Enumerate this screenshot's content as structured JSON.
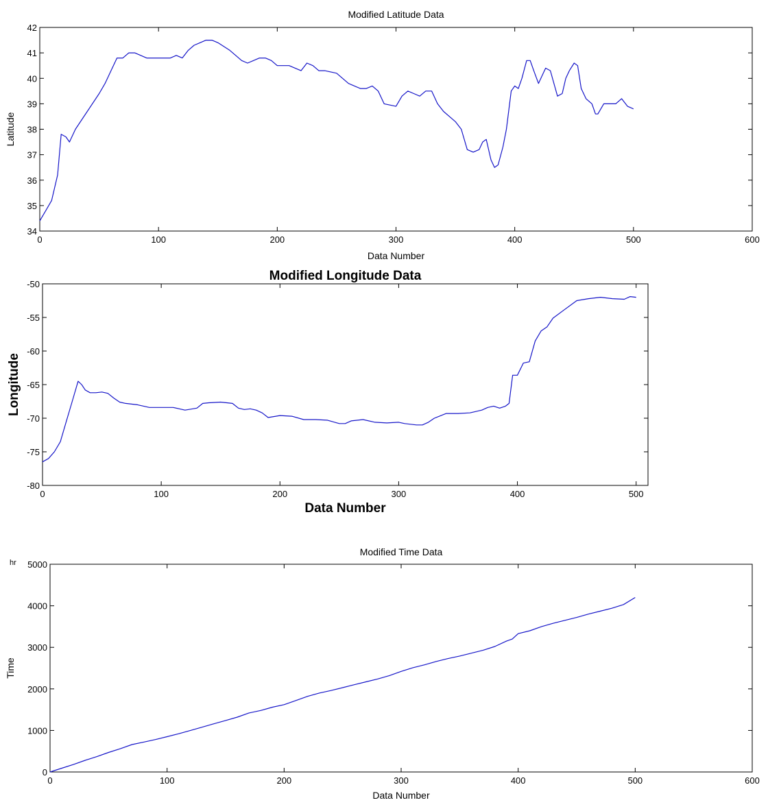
{
  "chart_data": [
    {
      "type": "line",
      "title": "Modified Latitude Data",
      "xlabel": "Data Number",
      "ylabel": "Latitude",
      "xlim": [
        0,
        600
      ],
      "ylim": [
        34,
        42
      ],
      "xticks": [
        0,
        100,
        200,
        300,
        400,
        500,
        600
      ],
      "yticks": [
        34,
        35,
        36,
        37,
        38,
        39,
        40,
        41,
        42
      ],
      "grid": false,
      "color": "#1414c8",
      "series": [
        {
          "x": [
            0,
            5,
            10,
            15,
            18,
            22,
            25,
            30,
            40,
            50,
            55,
            60,
            65,
            70,
            75,
            80,
            90,
            100,
            110,
            115,
            120,
            125,
            130,
            135,
            140,
            145,
            150,
            160,
            165,
            170,
            175,
            180,
            185,
            190,
            195,
            200,
            210,
            220,
            225,
            230,
            235,
            240,
            250,
            260,
            265,
            270,
            275,
            280,
            285,
            290,
            300,
            305,
            310,
            315,
            320,
            325,
            330,
            335,
            340,
            345,
            350,
            355,
            360,
            365,
            370,
            373,
            376,
            380,
            383,
            386,
            390,
            393,
            397,
            400,
            403,
            406,
            410,
            413,
            416,
            420,
            423,
            426,
            430,
            433,
            436,
            440,
            443,
            446,
            450,
            453,
            456,
            460,
            465,
            468,
            470,
            475,
            480,
            485,
            490,
            495,
            500
          ],
          "y": [
            34.4,
            34.8,
            35.2,
            36.2,
            37.8,
            37.7,
            37.5,
            38.0,
            38.7,
            39.4,
            39.8,
            40.3,
            40.8,
            40.8,
            41.0,
            41.0,
            40.8,
            40.8,
            40.8,
            40.9,
            40.8,
            41.1,
            41.3,
            41.4,
            41.5,
            41.5,
            41.4,
            41.1,
            40.9,
            40.7,
            40.6,
            40.7,
            40.8,
            40.8,
            40.7,
            40.5,
            40.5,
            40.3,
            40.6,
            40.5,
            40.3,
            40.3,
            40.2,
            39.8,
            39.7,
            39.6,
            39.6,
            39.7,
            39.5,
            39.0,
            38.9,
            39.3,
            39.5,
            39.4,
            39.3,
            39.5,
            39.5,
            39.0,
            38.7,
            38.5,
            38.3,
            38.0,
            37.2,
            37.1,
            37.2,
            37.5,
            37.6,
            36.8,
            36.5,
            36.6,
            37.3,
            38.0,
            39.5,
            39.7,
            39.6,
            40.0,
            40.7,
            40.7,
            40.3,
            39.8,
            40.1,
            40.4,
            40.3,
            39.8,
            39.3,
            39.4,
            40.0,
            40.3,
            40.6,
            40.5,
            39.6,
            39.2,
            39.0,
            38.6,
            38.6,
            39.0,
            39.0,
            39.0,
            39.2,
            38.9,
            38.8
          ]
        }
      ]
    },
    {
      "type": "line",
      "title": "Modified Longitude Data",
      "xlabel": "Data Number",
      "ylabel": "Longitude",
      "xlim": [
        0,
        510
      ],
      "ylim": [
        -80,
        -50
      ],
      "xticks": [
        0,
        100,
        200,
        300,
        400,
        500
      ],
      "yticks": [
        -80,
        -75,
        -70,
        -65,
        -60,
        -55,
        -50
      ],
      "grid": false,
      "color": "#1414c8",
      "series": [
        {
          "x": [
            0,
            5,
            10,
            15,
            20,
            25,
            30,
            33,
            36,
            40,
            45,
            50,
            55,
            60,
            65,
            70,
            80,
            90,
            100,
            110,
            120,
            130,
            135,
            140,
            150,
            160,
            165,
            170,
            175,
            180,
            185,
            190,
            200,
            210,
            220,
            230,
            240,
            250,
            255,
            260,
            270,
            280,
            290,
            300,
            305,
            310,
            315,
            320,
            325,
            330,
            340,
            350,
            360,
            370,
            375,
            380,
            385,
            390,
            393,
            396,
            400,
            405,
            410,
            415,
            420,
            425,
            430,
            440,
            450,
            460,
            470,
            480,
            490,
            495,
            500
          ],
          "y": [
            -76.5,
            -76.0,
            -75.0,
            -73.5,
            -70.5,
            -67.5,
            -64.5,
            -65.0,
            -65.8,
            -66.2,
            -66.2,
            -66.1,
            -66.3,
            -67.0,
            -67.6,
            -67.8,
            -68.0,
            -68.4,
            -68.4,
            -68.4,
            -68.8,
            -68.5,
            -67.8,
            -67.7,
            -67.6,
            -67.8,
            -68.5,
            -68.7,
            -68.6,
            -68.8,
            -69.2,
            -69.9,
            -69.6,
            -69.7,
            -70.2,
            -70.2,
            -70.3,
            -70.8,
            -70.8,
            -70.4,
            -70.2,
            -70.6,
            -70.7,
            -70.6,
            -70.8,
            -70.9,
            -71.0,
            -71.0,
            -70.6,
            -70.0,
            -69.3,
            -69.3,
            -69.2,
            -68.8,
            -68.4,
            -68.2,
            -68.5,
            -68.2,
            -67.8,
            -63.6,
            -63.6,
            -61.8,
            -61.6,
            -58.5,
            -57.0,
            -56.4,
            -55.1,
            -53.8,
            -52.5,
            -52.2,
            -52.0,
            -52.2,
            -52.3,
            -51.9,
            -52.0
          ]
        }
      ]
    },
    {
      "type": "line",
      "title": "Modified Time Data",
      "xlabel": "Data Number",
      "ylabel": "Time",
      "unit": "hr",
      "xlim": [
        0,
        600
      ],
      "ylim": [
        0,
        5000
      ],
      "xticks": [
        0,
        100,
        200,
        300,
        400,
        500,
        600
      ],
      "yticks": [
        0,
        1000,
        2000,
        3000,
        4000,
        5000
      ],
      "grid": false,
      "color": "#1414c8",
      "series": [
        {
          "x": [
            0,
            10,
            20,
            30,
            40,
            50,
            60,
            70,
            80,
            90,
            100,
            110,
            120,
            130,
            140,
            150,
            160,
            170,
            180,
            190,
            200,
            210,
            220,
            230,
            240,
            250,
            260,
            270,
            280,
            290,
            300,
            310,
            320,
            330,
            340,
            350,
            360,
            370,
            380,
            390,
            395,
            400,
            410,
            420,
            430,
            440,
            450,
            460,
            470,
            480,
            490,
            500
          ],
          "y": [
            0,
            90,
            180,
            280,
            370,
            470,
            560,
            660,
            720,
            780,
            850,
            920,
            1000,
            1080,
            1160,
            1240,
            1320,
            1420,
            1480,
            1560,
            1620,
            1720,
            1820,
            1900,
            1960,
            2030,
            2100,
            2170,
            2240,
            2320,
            2420,
            2510,
            2580,
            2660,
            2730,
            2790,
            2860,
            2930,
            3020,
            3150,
            3200,
            3330,
            3400,
            3500,
            3580,
            3650,
            3720,
            3800,
            3870,
            3940,
            4030,
            4200
          ]
        }
      ]
    }
  ]
}
